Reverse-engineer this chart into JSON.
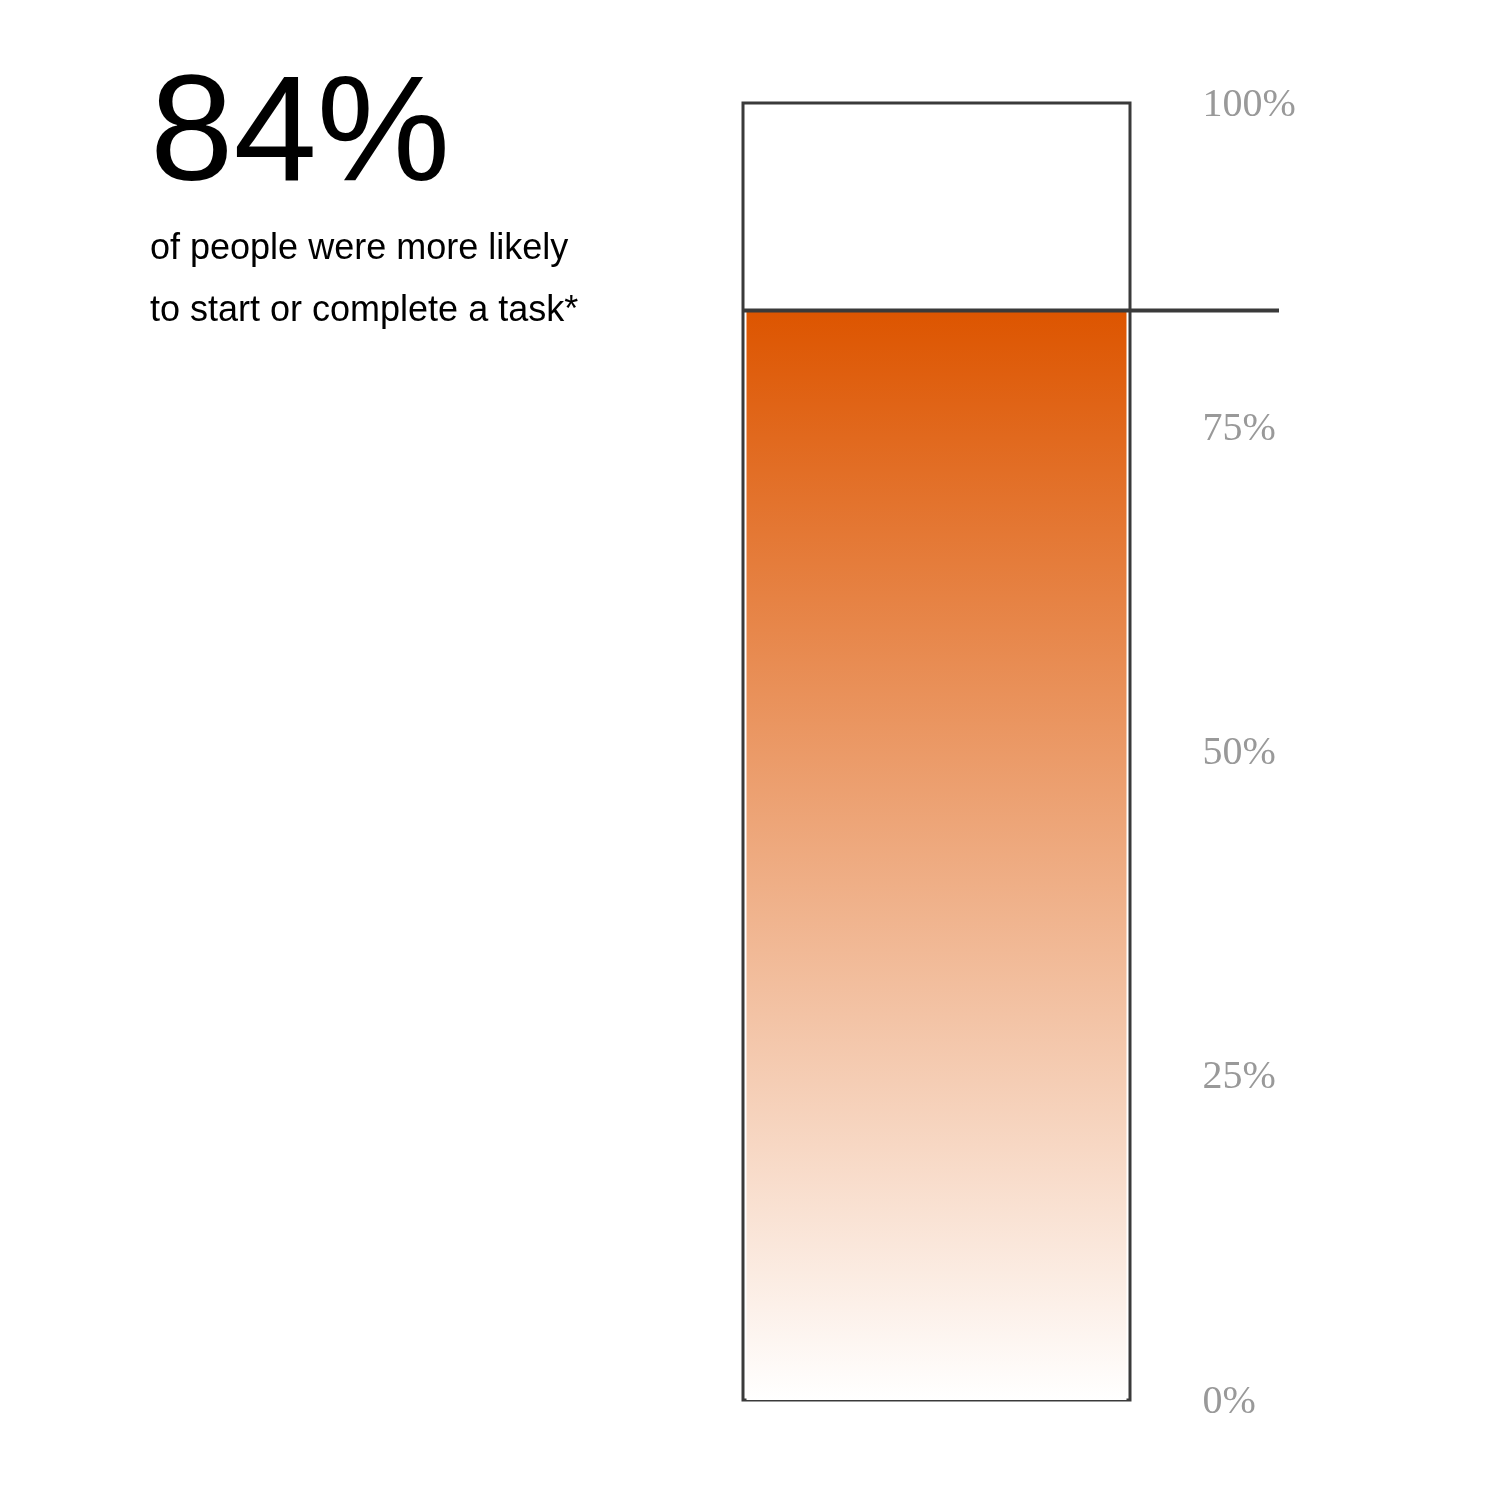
{
  "chart_data": {
    "type": "bar",
    "title": "84%",
    "subtitle": "of people were more likely to start or complete a task*",
    "categories": [
      null
    ],
    "values": [
      84
    ],
    "color": "#dd5500",
    "ylim": [
      0,
      100
    ],
    "yticks": [
      {
        "value": 0,
        "label": "0%"
      },
      {
        "value": 25,
        "label": "25%"
      },
      {
        "value": 50,
        "label": "50%"
      },
      {
        "value": 75,
        "label": "75%"
      },
      {
        "value": 100,
        "label": "100%"
      }
    ],
    "ref_lines": [
      {
        "axis": "y",
        "value": 84,
        "color": "#3a3a3a"
      }
    ],
    "grid": false
  }
}
